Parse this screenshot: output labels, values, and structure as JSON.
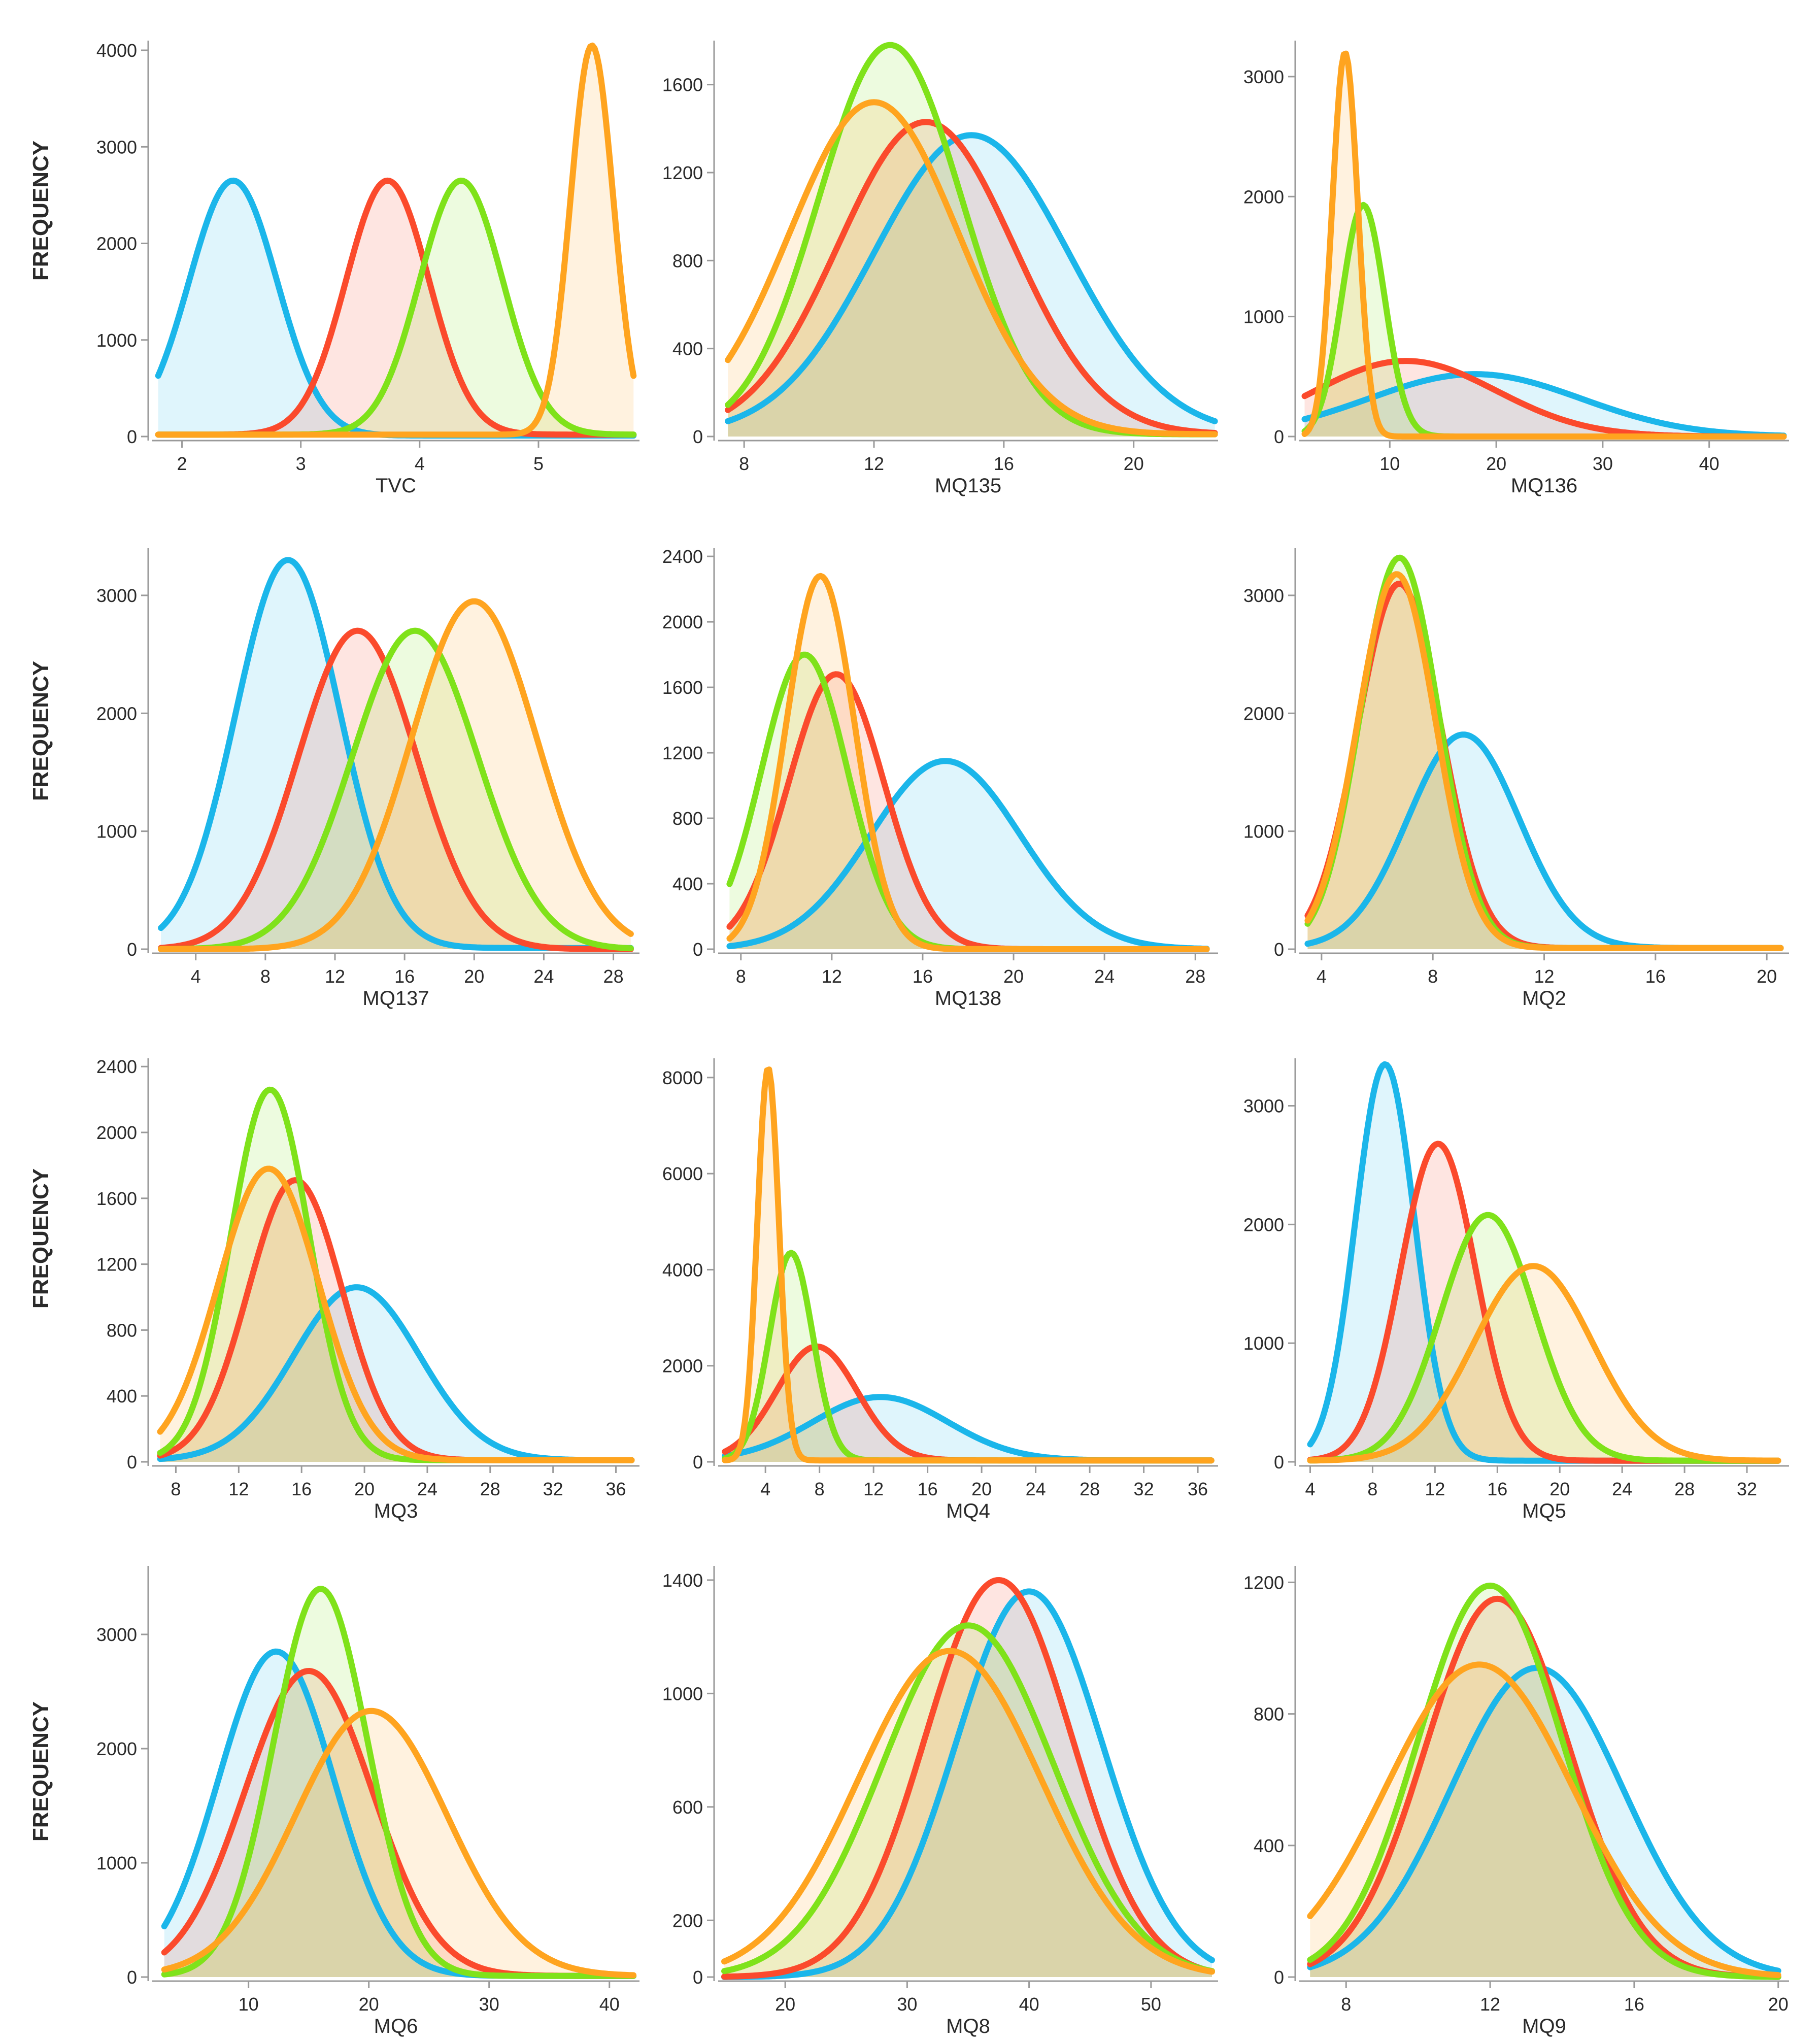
{
  "colors": {
    "blue": "#1bb6ea",
    "red": "#fb4a2c",
    "green": "#7fe21a",
    "orange": "#ffa41f",
    "axis": "#9a9a9a",
    "text": "#2a2a2a"
  },
  "row_labels": [
    "FREQUENCY",
    "FREQUENCY",
    "FREQUENCY",
    "FREQUENCY"
  ],
  "chart_data": [
    {
      "type": "area",
      "title": "",
      "xlabel": "TVC",
      "ylabel": "FREQUENCY",
      "xlim": [
        1.75,
        5.85
      ],
      "ylim": [
        0,
        4100
      ],
      "xticks": [
        2,
        3,
        4,
        5
      ],
      "yticks": [
        0,
        1000,
        2000,
        3000,
        4000
      ],
      "series": [
        {
          "name": "blue",
          "color": "blue",
          "mu": 2.43,
          "sigma": 0.37,
          "peak": 2650,
          "base": 10,
          "x_start": 1.8,
          "x_end": 5.8
        },
        {
          "name": "red",
          "color": "red",
          "mu": 3.73,
          "sigma": 0.35,
          "peak": 2650,
          "base": 20,
          "x_start": 1.8,
          "x_end": 5.8
        },
        {
          "name": "green",
          "color": "green",
          "mu": 4.35,
          "sigma": 0.35,
          "peak": 2650,
          "base": 20,
          "x_start": 1.8,
          "x_end": 5.8
        },
        {
          "name": "orange",
          "color": "orange",
          "mu": 5.45,
          "sigma": 0.18,
          "peak": 4050,
          "base": 20,
          "x_start": 1.8,
          "x_end": 5.8
        }
      ]
    },
    {
      "type": "area",
      "title": "",
      "xlabel": "MQ135",
      "ylabel": "",
      "xlim": [
        7.2,
        22.6
      ],
      "ylim": [
        0,
        1800
      ],
      "xticks": [
        8,
        12,
        16,
        20
      ],
      "yticks": [
        0,
        400,
        800,
        1200,
        1600
      ],
      "series": [
        {
          "name": "blue",
          "color": "blue",
          "mu": 15.0,
          "sigma": 3.0,
          "peak": 1370,
          "base": 10,
          "x_start": 7.5,
          "x_end": 22.5
        },
        {
          "name": "red",
          "color": "red",
          "mu": 13.6,
          "sigma": 2.7,
          "peak": 1430,
          "base": 10,
          "x_start": 7.5,
          "x_end": 22.5
        },
        {
          "name": "green",
          "color": "green",
          "mu": 12.5,
          "sigma": 2.2,
          "peak": 1780,
          "base": 10,
          "x_start": 7.5,
          "x_end": 22.5
        },
        {
          "name": "orange",
          "color": "orange",
          "mu": 12.0,
          "sigma": 2.6,
          "peak": 1520,
          "base": 10,
          "x_start": 7.5,
          "x_end": 22.5
        }
      ]
    },
    {
      "type": "area",
      "title": "",
      "xlabel": "MQ136",
      "ylabel": "",
      "xlim": [
        1.5,
        47.5
      ],
      "ylim": [
        0,
        3300
      ],
      "xticks": [
        10,
        20,
        30,
        40
      ],
      "yticks": [
        0,
        1000,
        2000,
        3000
      ],
      "series": [
        {
          "name": "blue",
          "color": "blue",
          "mu": 18.0,
          "sigma": 10.0,
          "peak": 520,
          "base": 0,
          "x_start": 2.0,
          "x_end": 47.0
        },
        {
          "name": "red",
          "color": "red",
          "mu": 11.5,
          "sigma": 8.5,
          "peak": 630,
          "base": 0,
          "x_start": 2.0,
          "x_end": 47.0
        },
        {
          "name": "green",
          "color": "green",
          "mu": 7.5,
          "sigma": 2.0,
          "peak": 1930,
          "base": 0,
          "x_start": 2.0,
          "x_end": 47.0
        },
        {
          "name": "orange",
          "color": "orange",
          "mu": 5.8,
          "sigma": 1.2,
          "peak": 3200,
          "base": 0,
          "x_start": 2.0,
          "x_end": 47.0
        }
      ]
    },
    {
      "type": "area",
      "title": "",
      "xlabel": "MQ137",
      "ylabel": "FREQUENCY",
      "xlim": [
        1.5,
        29.5
      ],
      "ylim": [
        0,
        3400
      ],
      "xticks": [
        4,
        8,
        12,
        16,
        20,
        24,
        28
      ],
      "yticks": [
        0,
        1000,
        2000,
        3000
      ],
      "series": [
        {
          "name": "blue",
          "color": "blue",
          "mu": 9.3,
          "sigma": 3.0,
          "peak": 3300,
          "base": 10,
          "x_start": 2.0,
          "x_end": 29.0
        },
        {
          "name": "red",
          "color": "red",
          "mu": 13.3,
          "sigma": 3.4,
          "peak": 2700,
          "base": 0,
          "x_start": 2.0,
          "x_end": 29.0
        },
        {
          "name": "green",
          "color": "green",
          "mu": 16.6,
          "sigma": 3.6,
          "peak": 2700,
          "base": 0,
          "x_start": 2.0,
          "x_end": 29.0
        },
        {
          "name": "orange",
          "color": "orange",
          "mu": 20.0,
          "sigma": 3.6,
          "peak": 2950,
          "base": 0,
          "x_start": 2.0,
          "x_end": 29.0
        }
      ]
    },
    {
      "type": "area",
      "title": "",
      "xlabel": "MQ138",
      "ylabel": "",
      "xlim": [
        7.0,
        29.0
      ],
      "ylim": [
        0,
        2450
      ],
      "xticks": [
        8,
        12,
        16,
        20,
        24,
        28
      ],
      "yticks": [
        0,
        400,
        800,
        1200,
        1600,
        2000,
        2400
      ],
      "series": [
        {
          "name": "blue",
          "color": "blue",
          "mu": 17.0,
          "sigma": 3.3,
          "peak": 1150,
          "base": 0,
          "x_start": 7.5,
          "x_end": 28.5
        },
        {
          "name": "red",
          "color": "red",
          "mu": 12.2,
          "sigma": 2.1,
          "peak": 1680,
          "base": 0,
          "x_start": 7.5,
          "x_end": 28.5
        },
        {
          "name": "green",
          "color": "green",
          "mu": 10.8,
          "sigma": 1.9,
          "peak": 1800,
          "base": 0,
          "x_start": 7.5,
          "x_end": 28.5
        },
        {
          "name": "orange",
          "color": "orange",
          "mu": 11.5,
          "sigma": 1.5,
          "peak": 2280,
          "base": 0,
          "x_start": 7.5,
          "x_end": 28.5
        }
      ]
    },
    {
      "type": "area",
      "title": "",
      "xlabel": "MQ2",
      "ylabel": "",
      "xlim": [
        3.2,
        20.8
      ],
      "ylim": [
        0,
        3400
      ],
      "xticks": [
        4,
        8,
        12,
        16,
        20
      ],
      "yticks": [
        0,
        1000,
        2000,
        3000
      ],
      "series": [
        {
          "name": "blue",
          "color": "blue",
          "mu": 9.1,
          "sigma": 2.0,
          "peak": 1820,
          "base": 10,
          "x_start": 3.5,
          "x_end": 20.5
        },
        {
          "name": "red",
          "color": "red",
          "mu": 6.8,
          "sigma": 1.5,
          "peak": 3100,
          "base": 10,
          "x_start": 3.5,
          "x_end": 20.5
        },
        {
          "name": "green",
          "color": "green",
          "mu": 6.8,
          "sigma": 1.4,
          "peak": 3320,
          "base": 10,
          "x_start": 3.5,
          "x_end": 20.5
        },
        {
          "name": "orange",
          "color": "orange",
          "mu": 6.7,
          "sigma": 1.4,
          "peak": 3180,
          "base": 10,
          "x_start": 3.5,
          "x_end": 20.5
        }
      ]
    },
    {
      "type": "area",
      "title": "",
      "xlabel": "MQ3",
      "ylabel": "FREQUENCY",
      "xlim": [
        6.5,
        37.5
      ],
      "ylim": [
        0,
        2450
      ],
      "xticks": [
        8,
        12,
        16,
        20,
        24,
        28,
        32,
        36
      ],
      "yticks": [
        0,
        400,
        800,
        1200,
        1600,
        2000,
        2400
      ],
      "series": [
        {
          "name": "blue",
          "color": "blue",
          "mu": 19.5,
          "sigma": 4.0,
          "peak": 1060,
          "base": 10,
          "x_start": 7.0,
          "x_end": 37.0
        },
        {
          "name": "red",
          "color": "red",
          "mu": 15.6,
          "sigma": 3.0,
          "peak": 1710,
          "base": 10,
          "x_start": 7.0,
          "x_end": 37.0
        },
        {
          "name": "green",
          "color": "green",
          "mu": 14.0,
          "sigma": 2.5,
          "peak": 2260,
          "base": 10,
          "x_start": 7.0,
          "x_end": 37.0
        },
        {
          "name": "orange",
          "color": "orange",
          "mu": 13.9,
          "sigma": 3.2,
          "peak": 1780,
          "base": 10,
          "x_start": 7.0,
          "x_end": 37.0
        }
      ]
    },
    {
      "type": "area",
      "title": "",
      "xlabel": "MQ4",
      "ylabel": "",
      "xlim": [
        0.5,
        37.5
      ],
      "ylim": [
        0,
        8400
      ],
      "xticks": [
        4,
        8,
        12,
        16,
        20,
        24,
        28,
        32,
        36
      ],
      "yticks": [
        0,
        2000,
        4000,
        6000,
        8000
      ],
      "series": [
        {
          "name": "blue",
          "color": "blue",
          "mu": 12.5,
          "sigma": 5.0,
          "peak": 1350,
          "base": 30,
          "x_start": 1.0,
          "x_end": 37.0
        },
        {
          "name": "red",
          "color": "red",
          "mu": 7.8,
          "sigma": 3.0,
          "peak": 2400,
          "base": 30,
          "x_start": 1.0,
          "x_end": 37.0
        },
        {
          "name": "green",
          "color": "green",
          "mu": 5.9,
          "sigma": 1.6,
          "peak": 4350,
          "base": 30,
          "x_start": 1.0,
          "x_end": 37.0
        },
        {
          "name": "orange",
          "color": "orange",
          "mu": 4.2,
          "sigma": 0.8,
          "peak": 8200,
          "base": 30,
          "x_start": 1.0,
          "x_end": 37.0
        }
      ]
    },
    {
      "type": "area",
      "title": "",
      "xlabel": "MQ5",
      "ylabel": "",
      "xlim": [
        3.3,
        34.7
      ],
      "ylim": [
        0,
        3400
      ],
      "xticks": [
        4,
        8,
        12,
        16,
        20,
        24,
        28,
        32
      ],
      "yticks": [
        0,
        1000,
        2000,
        3000
      ],
      "series": [
        {
          "name": "blue",
          "color": "blue",
          "mu": 8.8,
          "sigma": 1.9,
          "peak": 3350,
          "base": 10,
          "x_start": 4.0,
          "x_end": 34.0
        },
        {
          "name": "red",
          "color": "red",
          "mu": 12.2,
          "sigma": 2.4,
          "peak": 2680,
          "base": 10,
          "x_start": 4.0,
          "x_end": 34.0
        },
        {
          "name": "green",
          "color": "green",
          "mu": 15.4,
          "sigma": 3.0,
          "peak": 2080,
          "base": 10,
          "x_start": 4.0,
          "x_end": 34.0
        },
        {
          "name": "orange",
          "color": "orange",
          "mu": 18.3,
          "sigma": 3.8,
          "peak": 1650,
          "base": 10,
          "x_start": 4.0,
          "x_end": 34.0
        }
      ]
    },
    {
      "type": "area",
      "title": "",
      "xlabel": "MQ6",
      "ylabel": "FREQUENCY",
      "xlim": [
        2.0,
        42.5
      ],
      "ylim": [
        0,
        3600
      ],
      "xticks": [
        10,
        20,
        30,
        40
      ],
      "yticks": [
        0,
        1000,
        2000,
        3000
      ],
      "series": [
        {
          "name": "blue",
          "color": "blue",
          "mu": 12.3,
          "sigma": 4.8,
          "peak": 2850,
          "base": 10,
          "x_start": 3.0,
          "x_end": 42.0
        },
        {
          "name": "red",
          "color": "red",
          "mu": 15.0,
          "sigma": 5.3,
          "peak": 2680,
          "base": 10,
          "x_start": 3.0,
          "x_end": 42.0
        },
        {
          "name": "green",
          "color": "green",
          "mu": 16.0,
          "sigma": 3.9,
          "peak": 3400,
          "base": 10,
          "x_start": 3.0,
          "x_end": 42.0
        },
        {
          "name": "orange",
          "color": "orange",
          "mu": 20.2,
          "sigma": 6.3,
          "peak": 2330,
          "base": 10,
          "x_start": 3.0,
          "x_end": 42.0
        }
      ]
    },
    {
      "type": "area",
      "title": "",
      "xlabel": "MQ8",
      "ylabel": "",
      "xlim": [
        14.5,
        55.5
      ],
      "ylim": [
        0,
        1450
      ],
      "xticks": [
        20,
        30,
        40,
        50
      ],
      "yticks": [
        0,
        200,
        600,
        1000,
        1400
      ],
      "series": [
        {
          "name": "blue",
          "color": "blue",
          "mu": 40.0,
          "sigma": 6.0,
          "peak": 1360,
          "base": 0,
          "x_start": 15.0,
          "x_end": 55.0
        },
        {
          "name": "red",
          "color": "red",
          "mu": 37.5,
          "sigma": 6.0,
          "peak": 1400,
          "base": 0,
          "x_start": 15.0,
          "x_end": 55.0
        },
        {
          "name": "green",
          "color": "green",
          "mu": 35.0,
          "sigma": 7.0,
          "peak": 1240,
          "base": 0,
          "x_start": 15.0,
          "x_end": 55.0
        },
        {
          "name": "orange",
          "color": "orange",
          "mu": 33.5,
          "sigma": 7.5,
          "peak": 1150,
          "base": 0,
          "x_start": 15.0,
          "x_end": 55.0
        }
      ]
    },
    {
      "type": "area",
      "title": "",
      "xlabel": "MQ9",
      "ylabel": "",
      "xlim": [
        6.7,
        20.3
      ],
      "ylim": [
        0,
        1250
      ],
      "xticks": [
        8,
        12,
        16,
        20
      ],
      "yticks": [
        0,
        400,
        800,
        1200
      ],
      "series": [
        {
          "name": "blue",
          "color": "blue",
          "mu": 13.3,
          "sigma": 2.4,
          "peak": 940,
          "base": 0,
          "x_start": 7.0,
          "x_end": 20.0
        },
        {
          "name": "red",
          "color": "red",
          "mu": 12.2,
          "sigma": 2.0,
          "peak": 1150,
          "base": 0,
          "x_start": 7.0,
          "x_end": 20.0
        },
        {
          "name": "green",
          "color": "green",
          "mu": 12.0,
          "sigma": 2.0,
          "peak": 1190,
          "base": 0,
          "x_start": 7.0,
          "x_end": 20.0
        },
        {
          "name": "orange",
          "color": "orange",
          "mu": 11.7,
          "sigma": 2.6,
          "peak": 950,
          "base": 0,
          "x_start": 7.0,
          "x_end": 20.0
        }
      ]
    }
  ]
}
